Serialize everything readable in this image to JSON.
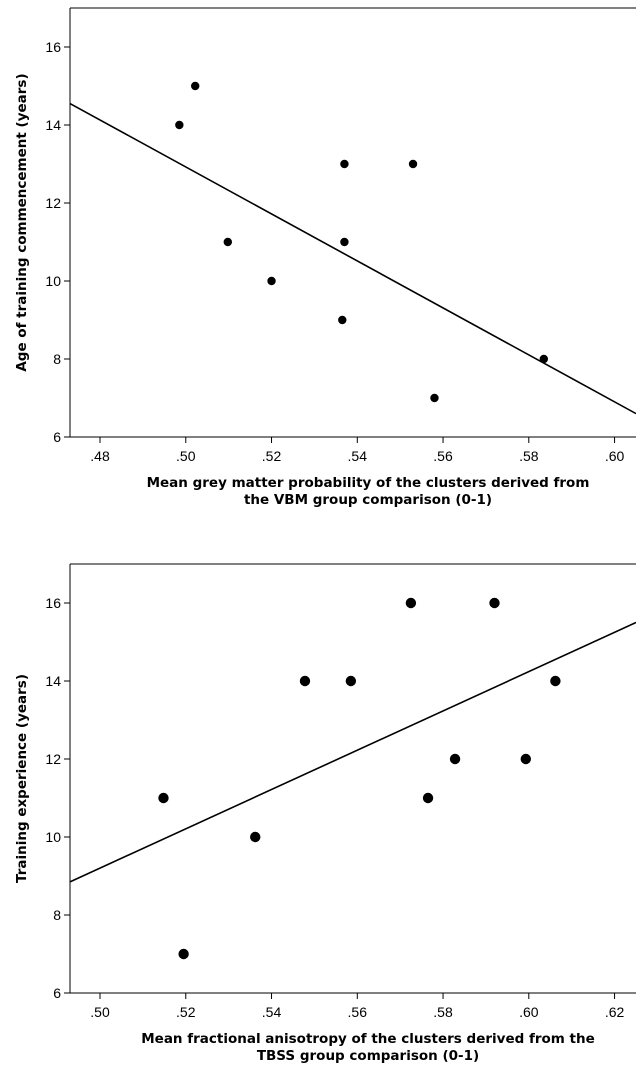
{
  "chart_data": [
    {
      "type": "scatter",
      "title": "",
      "xlabel": [
        "Mean grey matter probability of the clusters derived from",
        "the VBM group comparison (0-1)"
      ],
      "ylabel": "Age of training commencement (years)",
      "xlim": [
        0.473,
        0.605
      ],
      "ylim": [
        6,
        17
      ],
      "xticks": [
        0.48,
        0.5,
        0.52,
        0.54,
        0.56,
        0.58,
        0.6
      ],
      "xtick_labels": [
        ".48",
        ".50",
        ".52",
        ".54",
        ".56",
        ".58",
        ".60"
      ],
      "yticks": [
        6,
        8,
        10,
        12,
        14,
        16
      ],
      "ytick_labels": [
        "6",
        "8",
        "10",
        "12",
        "14",
        "16"
      ],
      "points": [
        {
          "x": 0.4985,
          "y": 14
        },
        {
          "x": 0.5022,
          "y": 15
        },
        {
          "x": 0.5098,
          "y": 11
        },
        {
          "x": 0.52,
          "y": 10
        },
        {
          "x": 0.5365,
          "y": 9
        },
        {
          "x": 0.537,
          "y": 13
        },
        {
          "x": 0.537,
          "y": 11
        },
        {
          "x": 0.553,
          "y": 13
        },
        {
          "x": 0.558,
          "y": 7
        },
        {
          "x": 0.5835,
          "y": 8
        }
      ],
      "fit_line": {
        "x": [
          0.473,
          0.605
        ],
        "y": [
          14.55,
          6.6
        ]
      },
      "grid": false
    },
    {
      "type": "scatter",
      "title": "",
      "xlabel": [
        "Mean fractional anisotropy of the clusters derived from the",
        "TBSS group comparison (0-1)"
      ],
      "ylabel": "Training experience (years)",
      "xlim": [
        0.493,
        0.625
      ],
      "ylim": [
        6,
        17
      ],
      "xticks": [
        0.5,
        0.52,
        0.54,
        0.56,
        0.58,
        0.6,
        0.62
      ],
      "xtick_labels": [
        ".50",
        ".52",
        ".54",
        ".56",
        ".58",
        ".60",
        ".62"
      ],
      "yticks": [
        6,
        8,
        10,
        12,
        14,
        16
      ],
      "ytick_labels": [
        "6",
        "8",
        "10",
        "12",
        "14",
        "16"
      ],
      "points": [
        {
          "x": 0.5148,
          "y": 11
        },
        {
          "x": 0.5195,
          "y": 7
        },
        {
          "x": 0.5362,
          "y": 10
        },
        {
          "x": 0.5478,
          "y": 14
        },
        {
          "x": 0.5585,
          "y": 14
        },
        {
          "x": 0.5725,
          "y": 16
        },
        {
          "x": 0.5765,
          "y": 11
        },
        {
          "x": 0.5828,
          "y": 12
        },
        {
          "x": 0.592,
          "y": 16
        },
        {
          "x": 0.5993,
          "y": 12
        },
        {
          "x": 0.6062,
          "y": 14
        }
      ],
      "fit_line": {
        "x": [
          0.493,
          0.625
        ],
        "y": [
          8.85,
          15.5
        ]
      },
      "grid": false
    }
  ]
}
